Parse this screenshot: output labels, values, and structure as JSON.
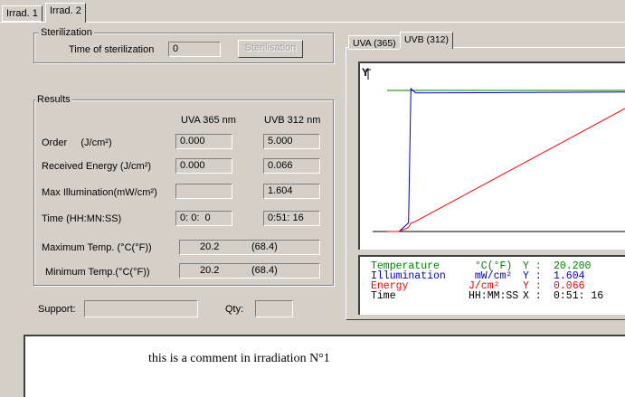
{
  "tabs": [
    {
      "label": "Irrad. 1"
    },
    {
      "label": "Irrad. 2"
    }
  ],
  "sterilization": {
    "group_label": "Sterilization",
    "time_label": "Time of sterilization",
    "time_value": "0",
    "button_label": "Sterilisation"
  },
  "results": {
    "group_label": "Results",
    "col_uva": "UVA 365 nm",
    "col_uvb": "UVB 312 nm",
    "rows": [
      {
        "label": "Order     (J/cm²)",
        "uva": "0.000",
        "uvb": "5.000"
      },
      {
        "label": "Received Energy (J/cm²)",
        "uva": "0.000",
        "uvb": "0.066"
      },
      {
        "label": "Max Illumination(mW/cm²)",
        "uva": "",
        "uvb": "1.604"
      },
      {
        "label": "Time (HH:MN:SS)",
        "uva": "0: 0:  0",
        "uvb": "0:51: 16"
      }
    ],
    "max_temp_label": "Maximum Temp. (°C(°F))",
    "max_temp_c": "20.2",
    "max_temp_f": "(68.4)",
    "min_temp_label": "Minimum Temp.(°C(°F))",
    "min_temp_c": "20.2",
    "min_temp_f": "(68.4)"
  },
  "support": {
    "support_label": "Support:",
    "support_value": "",
    "qty_label": "Qty:",
    "qty_value": ""
  },
  "chart_tabs": [
    {
      "label": "UVA (365)"
    },
    {
      "label": "UVB (312)"
    }
  ],
  "chart_data": {
    "type": "line",
    "ylabel": "Y",
    "x": [
      0,
      0.05,
      0.09,
      0.1,
      0.12,
      1.0
    ],
    "series": [
      {
        "name": "Temperature",
        "color": "#008000",
        "values": [
          20.2,
          20.2,
          20.2,
          20.2,
          20.2,
          20.2
        ]
      },
      {
        "name": "Illumination",
        "color": "#0000c8",
        "values": [
          0.0,
          0.0,
          0.1,
          1.65,
          1.6,
          1.61
        ]
      },
      {
        "name": "Energy",
        "color": "#ff0000",
        "values": [
          0.0,
          0.0,
          0.002,
          0.004,
          0.005,
          0.06
        ]
      }
    ]
  },
  "legend": {
    "rows": [
      {
        "name": "Temperature",
        "unit": " °C(°F)",
        "axis": "Y :",
        "value": "20.200",
        "color": "#008000"
      },
      {
        "name": "Illumination",
        "unit": " mW/cm²",
        "axis": "Y :",
        "value": "1.604",
        "color": "#0000c8"
      },
      {
        "name": "Energy",
        "unit": "J/cm²",
        "axis": "Y :",
        "value": "0.066",
        "color": "#ff0000"
      },
      {
        "name": "Time",
        "unit": "HH:MM:SS",
        "axis": "X :",
        "value": "0:51: 16",
        "color": "#000000"
      }
    ]
  },
  "comment": {
    "text": "this is a comment in irradiation N°1"
  }
}
